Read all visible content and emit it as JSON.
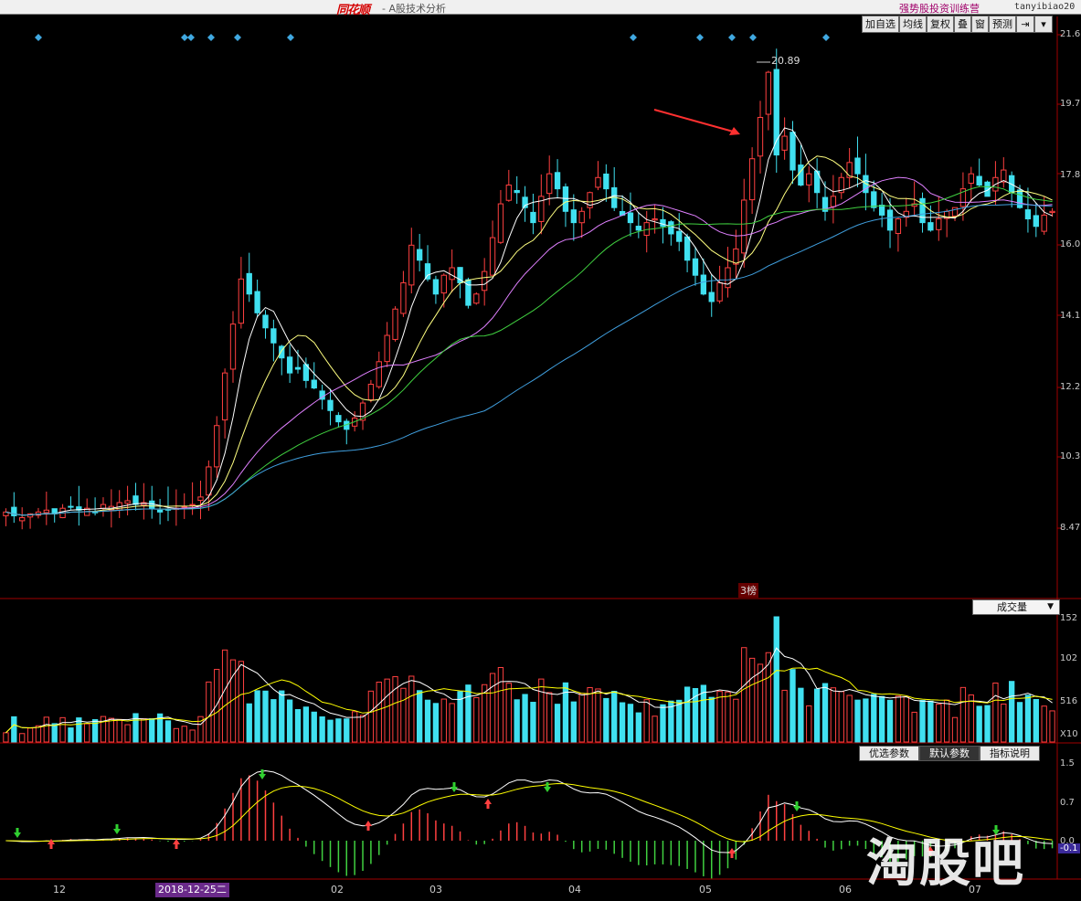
{
  "window": {
    "logo": "同花顺",
    "app_title": "- A股技术分析",
    "panel_title": "强势股投资训练营",
    "account": "tanyibiao20"
  },
  "toolbar": {
    "items": [
      "加自选",
      "均线",
      "复权",
      "叠",
      "窗",
      "预测"
    ],
    "icons": [
      "pin-right-icon",
      "dropdown-icon"
    ]
  },
  "price_axis": {
    "labels": [
      "21.6",
      "19.7",
      "17.8",
      "16.0",
      "14.1",
      "12.2",
      "10.3",
      "8.47"
    ]
  },
  "annotations": {
    "high_label": "20.89",
    "tag": "3榜"
  },
  "volume": {
    "selector": "成交量",
    "axis_labels": [
      "152",
      "102",
      "516",
      "X10"
    ]
  },
  "macd": {
    "tabs": [
      "优选参数",
      "默认参数",
      "指标说明"
    ],
    "active_tab": 1,
    "axis_labels": [
      "1.5",
      "0.7",
      "0.0"
    ],
    "current_value": "-0.1"
  },
  "x_axis": {
    "labels": [
      "12",
      "02",
      "03",
      "04",
      "05",
      "06",
      "07"
    ],
    "highlight_date": "2018-12-25二"
  },
  "watermark": "淘股吧",
  "colors": {
    "up": "#ff4040",
    "down": "#40e0f0",
    "ma5": "#ffffff",
    "ma10": "#ffff80",
    "ma20": "#e080ff",
    "ma30": "#40d040",
    "ma60": "#40a0e0",
    "signal_diamond": "#40a8e0"
  },
  "chart_data": {
    "type": "candlestick",
    "ylim": [
      8.47,
      21.6
    ],
    "high_marker": 20.89,
    "closes": [
      8.9,
      8.8,
      8.75,
      8.85,
      8.9,
      8.95,
      8.85,
      9.0,
      9.05,
      8.95,
      9.0,
      8.9,
      9.1,
      9.05,
      9.15,
      9.2,
      9.1,
      9.15,
      9.0,
      8.9,
      8.95,
      9.0,
      9.05,
      9.1,
      9.3,
      10.1,
      11.2,
      12.6,
      13.9,
      15.1,
      14.7,
      14.2,
      13.8,
      13.4,
      13.0,
      12.6,
      12.7,
      12.4,
      12.2,
      11.9,
      11.6,
      11.3,
      11.1,
      11.4,
      11.8,
      12.3,
      12.9,
      13.6,
      14.3,
      15.0,
      16.0,
      15.6,
      15.1,
      14.7,
      15.2,
      15.4,
      15.0,
      14.4,
      14.7,
      15.3,
      16.2,
      17.1,
      17.6,
      17.4,
      17.0,
      16.6,
      17.3,
      17.9,
      17.5,
      16.9,
      16.6,
      16.9,
      17.4,
      17.8,
      17.5,
      17.0,
      16.8,
      16.6,
      16.4,
      16.6,
      16.7,
      16.5,
      16.3,
      16.1,
      15.6,
      15.2,
      14.7,
      14.5,
      15.0,
      15.4,
      15.9,
      17.2,
      18.3,
      19.4,
      20.6,
      18.4,
      18.9,
      18.0,
      17.6,
      17.9,
      17.4,
      16.9,
      17.3,
      17.8,
      18.2,
      17.9,
      17.4,
      17.0,
      16.8,
      16.4,
      16.7,
      16.9,
      17.1,
      16.6,
      16.4,
      16.7,
      16.9,
      17.0,
      17.5,
      17.9,
      17.6,
      17.3,
      17.8,
      18.0,
      17.4,
      17.0,
      16.7,
      16.5,
      16.8,
      16.9
    ]
  }
}
